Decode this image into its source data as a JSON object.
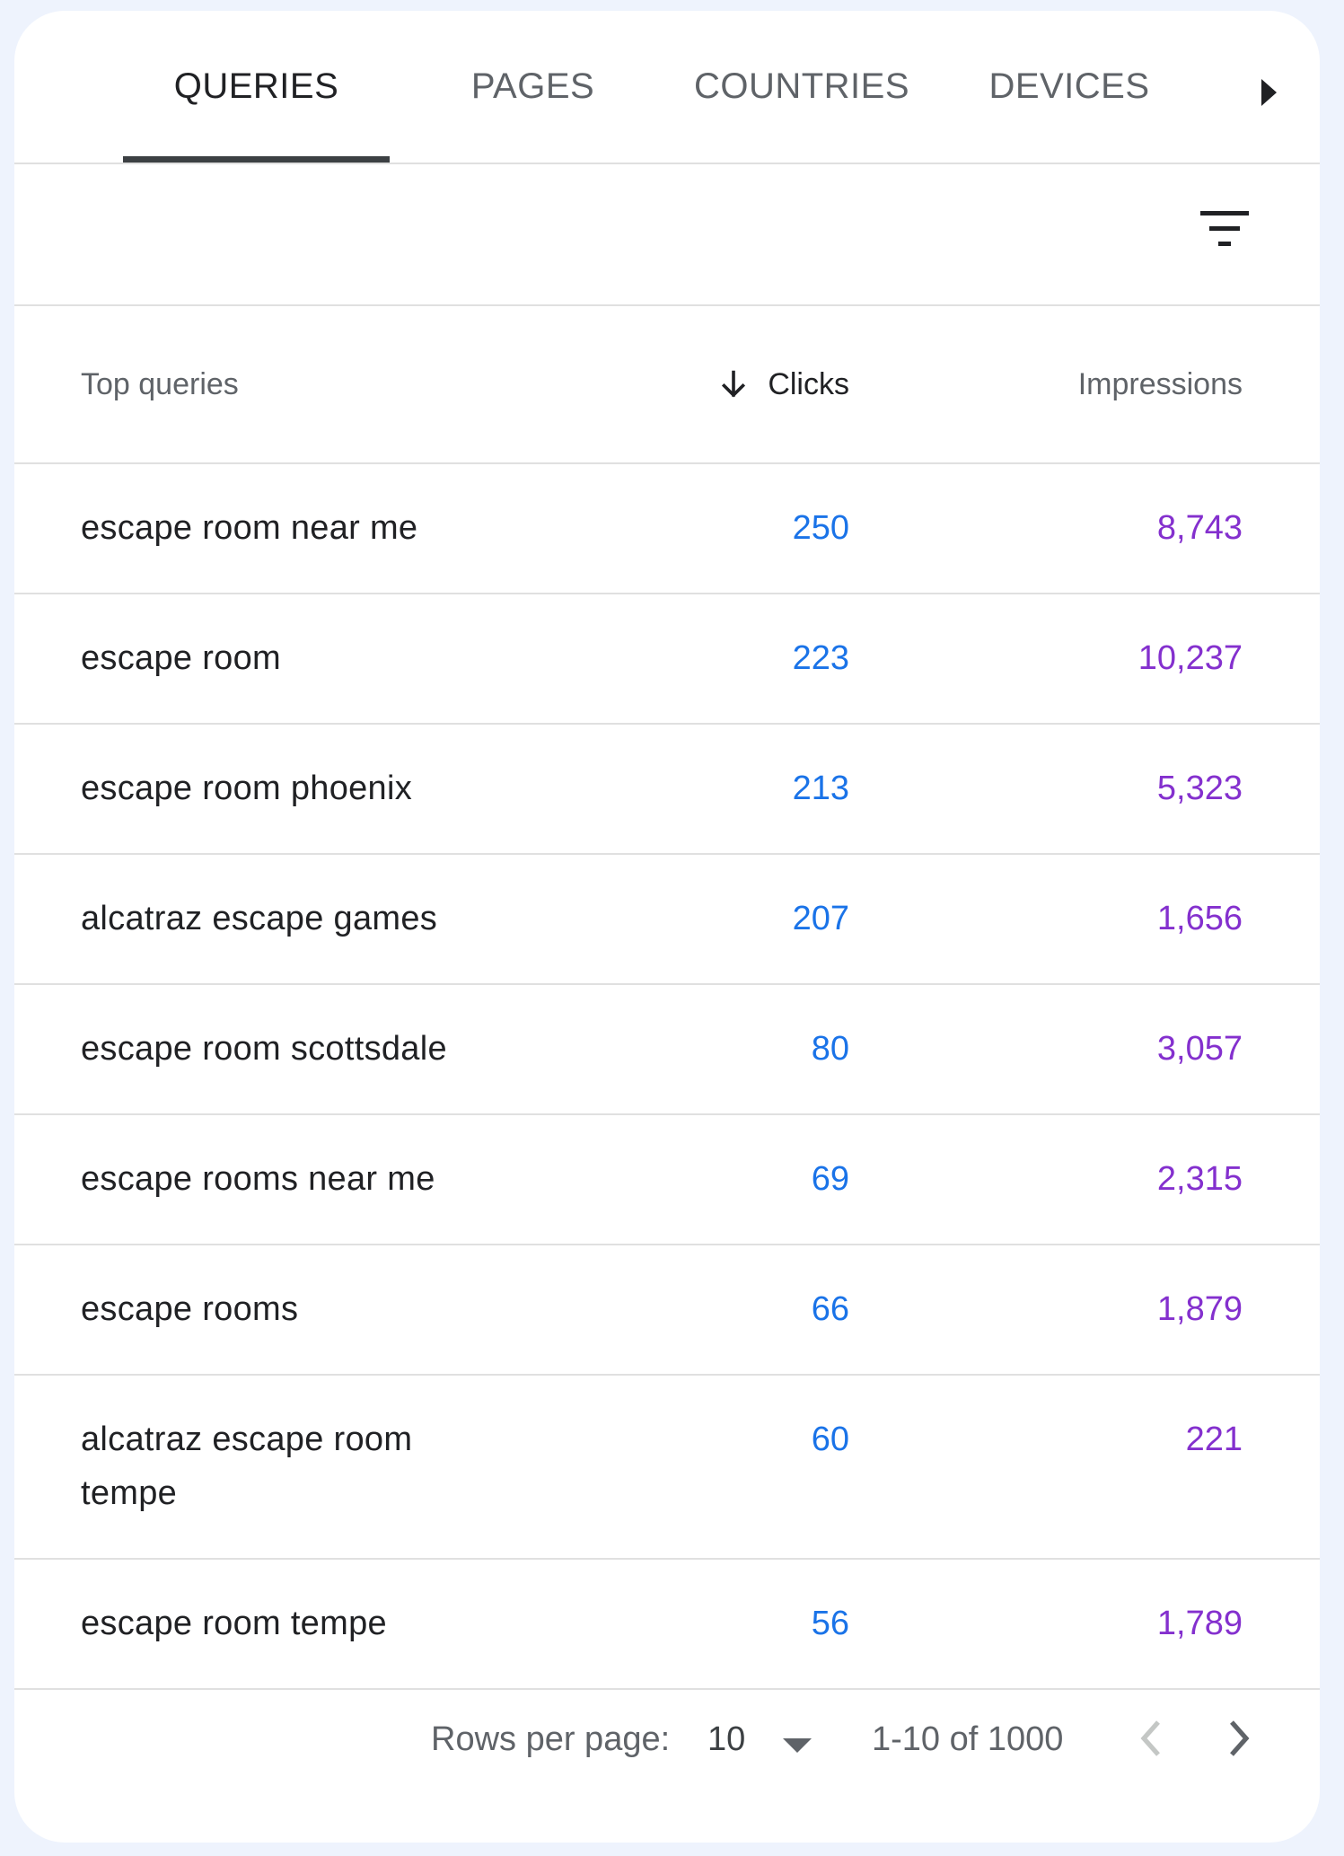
{
  "tabs": [
    {
      "label": "QUERIES",
      "active": true
    },
    {
      "label": "PAGES",
      "active": false
    },
    {
      "label": "COUNTRIES",
      "active": false
    },
    {
      "label": "DEVICES",
      "active": false
    }
  ],
  "icons": {
    "tabs_next": "triangle-right-icon",
    "filter": "filter-list-icon",
    "sort": "arrow-down-icon",
    "prev_page": "chevron-left-icon",
    "next_page": "chevron-right-icon",
    "rows_dropdown": "caret-down-icon"
  },
  "table": {
    "headers": {
      "query": "Top queries",
      "clicks": "Clicks",
      "impressions": "Impressions"
    },
    "sort_column": "clicks",
    "sort_direction": "descending",
    "rows": [
      {
        "query": "escape room near me",
        "clicks": "250",
        "impressions": "8,743"
      },
      {
        "query": "escape room",
        "clicks": "223",
        "impressions": "10,237"
      },
      {
        "query": "escape room phoenix",
        "clicks": "213",
        "impressions": "5,323"
      },
      {
        "query": "alcatraz escape games",
        "clicks": "207",
        "impressions": "1,656"
      },
      {
        "query": "escape room scottsdale",
        "clicks": "80",
        "impressions": "3,057"
      },
      {
        "query": "escape rooms near me",
        "clicks": "69",
        "impressions": "2,315"
      },
      {
        "query": "escape rooms",
        "clicks": "66",
        "impressions": "1,879"
      },
      {
        "query": "alcatraz escape room tempe",
        "clicks": "60",
        "impressions": "221"
      },
      {
        "query": "escape room tempe",
        "clicks": "56",
        "impressions": "1,789"
      }
    ]
  },
  "pagination": {
    "rows_per_page_label": "Rows per page:",
    "rows_per_page_value": "10",
    "range_text": "1-10 of 1000"
  },
  "colors": {
    "background": "#eef3fd",
    "clicks": "#1a73e8",
    "impressions": "#8430ce",
    "active_tab_indicator": "#3c4043"
  }
}
